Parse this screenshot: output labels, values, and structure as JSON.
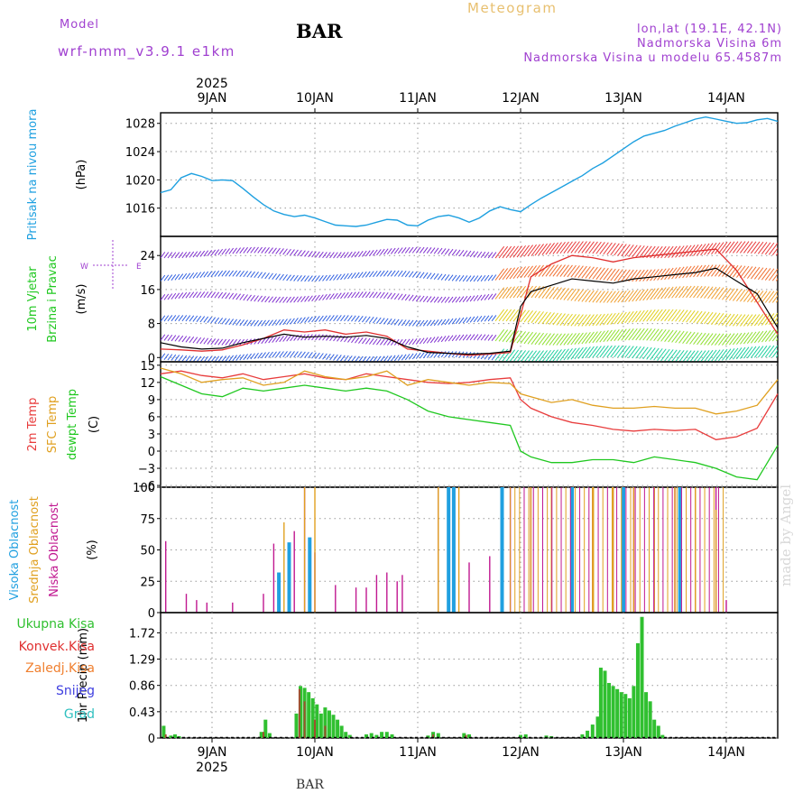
{
  "header": {
    "model_label": "Model",
    "model_name": "wrf-nmm_v3.9.1 e1km",
    "station": "BAR",
    "product": "Meteogram",
    "coords": "lon,lat (19.1E, 42.1N)",
    "elevation": "Nadmorska Visina 6m",
    "model_elevation": "Nadmorska Visina u modelu 65.4587m",
    "watermark": "made by Angel",
    "footer_station": "BAR"
  },
  "colors": {
    "pressure": "#1ea0e0",
    "wind_speed": "#000000",
    "gust": "#e03030",
    "t2m": "#e83c3c",
    "sfc": "#e0a020",
    "dewpt": "#20c820",
    "high_cloud": "#20a0e0",
    "mid_cloud": "#e0a020",
    "low_cloud": "#c01890",
    "precip_total": "#30c030",
    "precip_conv": "#e03030",
    "grid": "#999999",
    "model_text": "#a040d0",
    "product_text": "#e8c070"
  },
  "time_axis": {
    "year": "2025",
    "days": [
      "9JAN",
      "10JAN",
      "11JAN",
      "12JAN",
      "13JAN",
      "14JAN"
    ],
    "start_day_offset": -0.5,
    "end_day_offset": 5.5
  },
  "chart_data": [
    {
      "type": "line",
      "name": "pressure",
      "ylabel_lines": [
        "Pritisak na nivou mora",
        "(hPa)"
      ],
      "ylim": [
        1012,
        1029.5
      ],
      "yticks": [
        "1016",
        "1020",
        "1024",
        "1028"
      ],
      "x": [
        -0.5,
        -0.4,
        -0.3,
        -0.2,
        -0.1,
        0.0,
        0.1,
        0.2,
        0.3,
        0.4,
        0.5,
        0.6,
        0.7,
        0.8,
        0.9,
        1.0,
        1.1,
        1.2,
        1.3,
        1.4,
        1.5,
        1.6,
        1.7,
        1.8,
        1.9,
        2.0,
        2.1,
        2.2,
        2.3,
        2.4,
        2.5,
        2.6,
        2.7,
        2.8,
        2.9,
        3.0,
        3.1,
        3.2,
        3.3,
        3.4,
        3.5,
        3.6,
        3.7,
        3.8,
        3.9,
        4.0,
        4.1,
        4.2,
        4.3,
        4.4,
        4.5,
        4.6,
        4.7,
        4.8,
        4.9,
        5.0,
        5.1,
        5.2,
        5.3,
        5.4,
        5.5
      ],
      "y": [
        1018.2,
        1018.6,
        1020.3,
        1020.9,
        1020.5,
        1019.9,
        1020.0,
        1019.9,
        1018.8,
        1017.6,
        1016.5,
        1015.6,
        1015.1,
        1014.8,
        1015.0,
        1014.6,
        1014.1,
        1013.6,
        1013.5,
        1013.4,
        1013.6,
        1014.0,
        1014.4,
        1014.3,
        1013.6,
        1013.5,
        1014.3,
        1014.8,
        1015.0,
        1014.6,
        1014.0,
        1014.6,
        1015.6,
        1016.2,
        1015.8,
        1015.5,
        1016.5,
        1017.4,
        1018.2,
        1019.0,
        1019.8,
        1020.6,
        1021.6,
        1022.4,
        1023.4,
        1024.4,
        1025.4,
        1026.2,
        1026.6,
        1027.0,
        1027.6,
        1028.1,
        1028.6,
        1028.9,
        1028.6,
        1028.3,
        1028.0,
        1028.1,
        1028.5,
        1028.7,
        1028.3
      ]
    },
    {
      "type": "line",
      "name": "wind",
      "ylabel_lines": [
        "10m Vjetar",
        "Brzina i Pravac",
        "(m/s)"
      ],
      "compass": [
        "W",
        "E",
        "N",
        "S"
      ],
      "ylim": [
        -1,
        28.5
      ],
      "yticks": [
        "0",
        "8",
        "16",
        "24"
      ],
      "series": [
        {
          "name": "speed",
          "x": [
            -0.5,
            -0.3,
            -0.1,
            0.1,
            0.3,
            0.5,
            0.7,
            0.9,
            1.1,
            1.3,
            1.5,
            1.7,
            1.9,
            2.1,
            2.3,
            2.5,
            2.7,
            2.9,
            3.0,
            3.1,
            3.3,
            3.5,
            3.7,
            3.9,
            4.1,
            4.3,
            4.5,
            4.7,
            4.9,
            5.1,
            5.3,
            5.5
          ],
          "y": [
            3.5,
            2.5,
            2.0,
            2.2,
            3.5,
            4.5,
            5.5,
            4.8,
            5.0,
            4.8,
            5.2,
            4.5,
            2.5,
            1.2,
            1.0,
            0.8,
            1.0,
            1.5,
            12.0,
            15.5,
            17.0,
            18.5,
            18.0,
            17.5,
            18.5,
            19.0,
            19.5,
            20.0,
            21.0,
            18.0,
            15.0,
            7.0
          ]
        },
        {
          "name": "gust",
          "x": [
            -0.5,
            -0.3,
            -0.1,
            0.1,
            0.3,
            0.5,
            0.7,
            0.9,
            1.1,
            1.3,
            1.5,
            1.7,
            1.9,
            2.1,
            2.3,
            2.5,
            2.7,
            2.9,
            3.0,
            3.1,
            3.3,
            3.5,
            3.7,
            3.9,
            4.1,
            4.3,
            4.5,
            4.7,
            4.9,
            5.1,
            5.3,
            5.5
          ],
          "y": [
            2.0,
            1.8,
            1.5,
            1.8,
            3.0,
            4.5,
            6.5,
            6.0,
            6.5,
            5.5,
            6.0,
            5.0,
            2.0,
            1.5,
            1.0,
            0.5,
            0.8,
            1.2,
            10.0,
            19.0,
            22.0,
            24.0,
            23.5,
            22.5,
            23.5,
            24.0,
            24.5,
            25.0,
            25.5,
            20.5,
            13.0,
            5.5
          ]
        }
      ]
    },
    {
      "type": "line",
      "name": "temperature",
      "ylabel_lines": [
        "2m Temp",
        "SFC Temp",
        "dewpt Temp",
        "(C)"
      ],
      "ylim": [
        -6.3,
        15.6
      ],
      "yticks": [
        "15",
        "12",
        "9",
        "6",
        "3",
        "0",
        "−3",
        "−6"
      ],
      "x": [
        -0.5,
        -0.3,
        -0.1,
        0.1,
        0.3,
        0.5,
        0.7,
        0.9,
        1.1,
        1.3,
        1.5,
        1.7,
        1.9,
        2.1,
        2.3,
        2.5,
        2.7,
        2.9,
        3.0,
        3.1,
        3.3,
        3.5,
        3.7,
        3.9,
        4.1,
        4.3,
        4.5,
        4.7,
        4.9,
        5.1,
        5.3,
        5.5
      ],
      "series": [
        {
          "name": "2m Temp",
          "y": [
            13.5,
            14.0,
            13.2,
            12.8,
            13.5,
            12.5,
            13.0,
            13.5,
            12.8,
            12.5,
            13.5,
            13.0,
            12.5,
            12.0,
            11.8,
            12.0,
            12.5,
            12.8,
            9.0,
            7.5,
            6.0,
            5.0,
            4.5,
            3.8,
            3.5,
            3.8,
            3.6,
            3.8,
            2.0,
            2.5,
            4.0,
            10.0
          ]
        },
        {
          "name": "SFC Temp",
          "y": [
            14.5,
            13.5,
            12.0,
            12.5,
            12.8,
            11.5,
            12.0,
            14.0,
            13.0,
            12.5,
            13.0,
            14.0,
            11.5,
            12.5,
            12.0,
            11.5,
            12.0,
            11.8,
            10.0,
            9.5,
            8.5,
            9.0,
            8.0,
            7.5,
            7.5,
            7.8,
            7.5,
            7.5,
            6.5,
            7.0,
            8.0,
            12.5
          ]
        },
        {
          "name": "dewpt Temp",
          "y": [
            13.0,
            11.5,
            10.0,
            9.5,
            11.0,
            10.5,
            11.0,
            11.5,
            11.0,
            10.5,
            11.0,
            10.5,
            9.0,
            7.0,
            6.0,
            5.5,
            5.0,
            4.5,
            0.0,
            -1.0,
            -2.0,
            -2.0,
            -1.5,
            -1.5,
            -2.0,
            -1.0,
            -1.5,
            -2.0,
            -3.0,
            -4.5,
            -5.0,
            1.0
          ]
        }
      ]
    },
    {
      "type": "bar",
      "name": "cloud",
      "ylabel_lines": [
        "Visoka Oblacnost",
        "Srednja Oblacnost",
        "Niska Oblacnost",
        "(%)"
      ],
      "ylim": [
        0,
        100
      ],
      "yticks": [
        "0",
        "25",
        "50",
        "75",
        "100"
      ],
      "series": [
        {
          "name": "Niska Oblacnost",
          "x": [
            -0.45,
            -0.25,
            -0.15,
            -0.05,
            0.2,
            0.5,
            0.6,
            0.8,
            0.9,
            1.0,
            1.2,
            1.4,
            1.5,
            1.6,
            1.7,
            1.8,
            1.85,
            2.2,
            2.3,
            2.5,
            2.7,
            2.9,
            3.1,
            3.3,
            3.5,
            3.7,
            3.9,
            4.1,
            4.3,
            4.5,
            4.7,
            4.9,
            5.0
          ],
          "y": [
            57,
            15,
            10,
            8,
            8,
            15,
            55,
            65,
            100,
            48,
            22,
            20,
            20,
            30,
            32,
            25,
            30,
            100,
            98,
            40,
            45,
            100,
            100,
            100,
            100,
            100,
            100,
            100,
            100,
            100,
            100,
            100,
            10
          ]
        },
        {
          "name": "Srednja Oblacnost",
          "x": [
            0.7,
            0.9,
            1.0,
            2.2,
            2.4,
            3.1,
            3.3,
            3.5,
            3.7,
            3.9,
            4.1,
            4.3,
            4.5,
            4.7,
            4.9
          ],
          "y": [
            72,
            100,
            100,
            100,
            100,
            100,
            100,
            100,
            100,
            100,
            100,
            100,
            100,
            100,
            82
          ]
        },
        {
          "name": "Visoka Oblacnost",
          "x": [
            0.65,
            0.75,
            0.95,
            2.3,
            2.35,
            2.82,
            3.5,
            4.0,
            4.55
          ],
          "y": [
            32,
            56,
            60,
            100,
            100,
            100,
            100,
            100,
            100
          ]
        }
      ]
    },
    {
      "type": "bar",
      "name": "precip",
      "ylabel_lines": [
        "1hr Precip (mm)"
      ],
      "legend": [
        "Ukupna Kisa",
        "Konvek.Kisa",
        "Zaledj.Kisa",
        "Snijeg",
        "Grad"
      ],
      "ylim": [
        0,
        2.05
      ],
      "yticks": [
        "0",
        "0.43",
        "0.86",
        "1.29",
        "1.72"
      ],
      "series": [
        {
          "name": "Ukupna Kisa",
          "x": [
            -0.47,
            -0.4,
            -0.36,
            -0.32,
            0.48,
            0.52,
            0.56,
            0.82,
            0.86,
            0.9,
            0.94,
            0.98,
            1.02,
            1.06,
            1.1,
            1.14,
            1.18,
            1.22,
            1.26,
            1.3,
            1.34,
            1.5,
            1.55,
            1.6,
            1.65,
            1.7,
            1.75,
            2.1,
            2.15,
            2.2,
            2.45,
            2.5,
            3.0,
            3.05,
            3.25,
            3.3,
            3.6,
            3.65,
            3.7,
            3.75,
            3.78,
            3.82,
            3.86,
            3.9,
            3.94,
            3.98,
            4.02,
            4.06,
            4.1,
            4.14,
            4.18,
            4.22,
            4.26,
            4.3,
            4.34,
            4.38
          ],
          "y": [
            0.2,
            0.04,
            0.06,
            0.03,
            0.1,
            0.3,
            0.08,
            0.4,
            0.85,
            0.82,
            0.75,
            0.65,
            0.55,
            0.4,
            0.5,
            0.45,
            0.38,
            0.3,
            0.2,
            0.1,
            0.05,
            0.06,
            0.08,
            0.05,
            0.1,
            0.1,
            0.06,
            0.04,
            0.1,
            0.08,
            0.08,
            0.06,
            0.05,
            0.06,
            0.04,
            0.03,
            0.06,
            0.12,
            0.22,
            0.35,
            1.15,
            1.1,
            0.9,
            0.85,
            0.8,
            0.75,
            0.72,
            0.65,
            0.85,
            1.55,
            1.98,
            0.75,
            0.6,
            0.3,
            0.2,
            0.05
          ]
        },
        {
          "name": "Konvek.Kisa",
          "x": [
            -0.45,
            0.5,
            0.85,
            0.9,
            1.0,
            1.1,
            2.15,
            2.47
          ],
          "y": [
            0.06,
            0.1,
            0.8,
            0.6,
            0.3,
            0.2,
            0.06,
            0.05
          ]
        }
      ]
    }
  ]
}
